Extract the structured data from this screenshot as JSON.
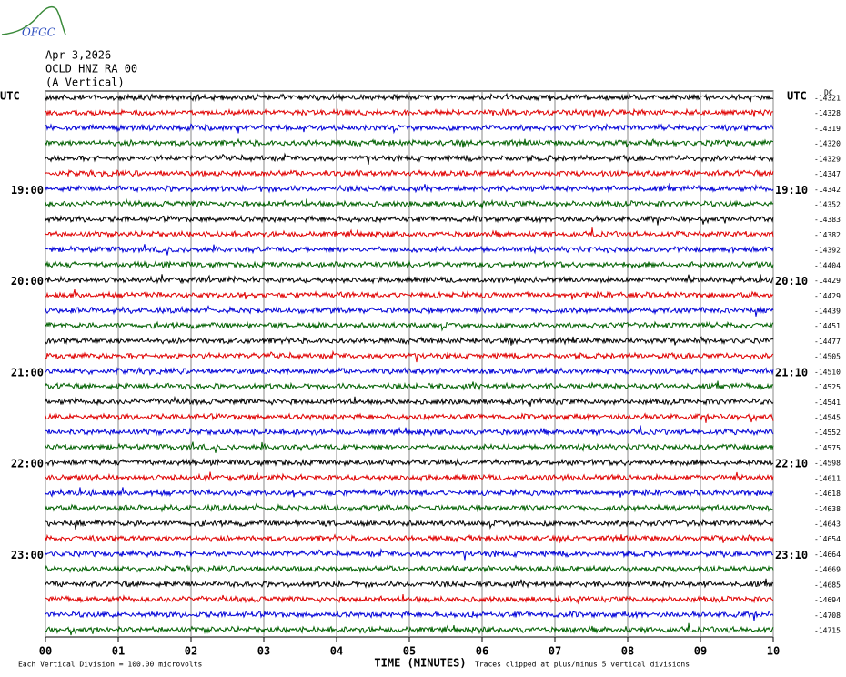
{
  "logo": "OFGC",
  "header": {
    "date": "Apr 3,2026",
    "station": "OCLD HNZ RA 00",
    "component": "(A Vertical)"
  },
  "chart_data": {
    "type": "helicorder",
    "left_axis_title": "UTC",
    "right_axis_title": "UTC",
    "dc_label": "DC",
    "xlabel": "TIME (MINUTES)",
    "xlim": [
      0,
      10
    ],
    "xticks": [
      {
        "value": 0,
        "label": "00"
      },
      {
        "value": 1,
        "label": "01"
      },
      {
        "value": 2,
        "label": "02"
      },
      {
        "value": 3,
        "label": "03"
      },
      {
        "value": 4,
        "label": "04"
      },
      {
        "value": 5,
        "label": "05"
      },
      {
        "value": 6,
        "label": "06"
      },
      {
        "value": 7,
        "label": "07"
      },
      {
        "value": 8,
        "label": "08"
      },
      {
        "value": 9,
        "label": "09"
      },
      {
        "value": 10,
        "label": "10"
      }
    ],
    "grid": true,
    "trace_colors": [
      "#000000",
      "#e00000",
      "#0000d8",
      "#006000"
    ],
    "left_labels": [
      null,
      null,
      null,
      null,
      null,
      null,
      "19:00",
      null,
      null,
      null,
      null,
      null,
      "20:00",
      null,
      null,
      null,
      null,
      null,
      "21:00",
      null,
      null,
      null,
      null,
      null,
      "22:00",
      null,
      null,
      null,
      null,
      null,
      "23:00",
      null,
      null,
      null,
      null,
      null
    ],
    "right_labels": [
      null,
      null,
      null,
      null,
      null,
      null,
      "19:10",
      null,
      null,
      null,
      null,
      null,
      "20:10",
      null,
      null,
      null,
      null,
      null,
      "21:10",
      null,
      null,
      null,
      null,
      null,
      "22:10",
      null,
      null,
      null,
      null,
      null,
      "23:10",
      null,
      null,
      null,
      null,
      null
    ],
    "offsets": [
      -14321,
      -14328,
      -14319,
      -14320,
      -14329,
      -14347,
      -14342,
      -14352,
      -14383,
      -14382,
      -14392,
      -14404,
      -14429,
      -14429,
      -14439,
      -14451,
      -14477,
      -14505,
      -14510,
      -14525,
      -14541,
      -14545,
      -14552,
      -14575,
      -14598,
      -14611,
      -14618,
      -14638,
      -14643,
      -14654,
      -14664,
      -14669,
      -14685,
      -14694,
      -14708,
      -14715
    ]
  },
  "footer": {
    "scale_note": "Each Vertical Division =  100.00 microvolts",
    "clip_note": "Traces clipped at plus/minus 5 vertical divisions"
  }
}
